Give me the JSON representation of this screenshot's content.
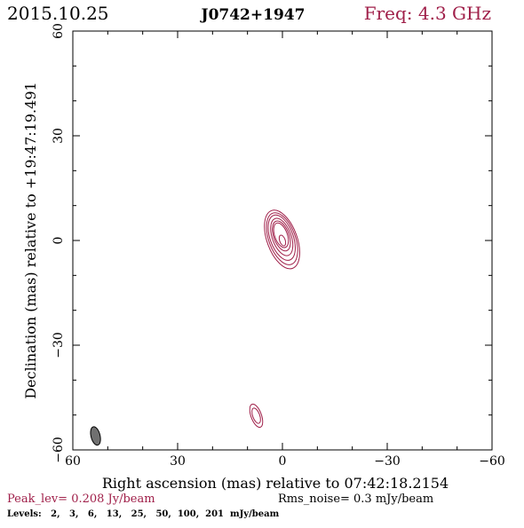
{
  "header": {
    "date": "2015.10.25",
    "source": "J0742+1947",
    "freq": "Freq: 4.3 GHz"
  },
  "footer": {
    "peak": "Peak_lev=  0.208 Jy/beam",
    "rms": "Rms_noise=  0.3 mJy/beam",
    "levels": "Levels:   2,   3,   6,   13,   25,   50,  100,  201  mJy/beam"
  },
  "colors": {
    "contour": "#a0204a",
    "beam": "#707070",
    "axis": "#000000"
  },
  "chart_data": {
    "type": "contour",
    "title": "J0742+1947",
    "xlabel": "Right ascension (mas) relative to 07:42:18.2154",
    "ylabel": "Declination (mas) relative to +19:47:19.491",
    "xlim": [
      60,
      -60
    ],
    "ylim": [
      -60,
      60
    ],
    "x_ticks": [
      60,
      30,
      0,
      -30,
      -60
    ],
    "y_ticks": [
      -60,
      -30,
      0,
      30,
      60
    ],
    "x_tick_labels": [
      "60",
      "30",
      "0",
      "−30",
      "−60"
    ],
    "y_tick_labels": [
      "−60",
      "−30",
      "0",
      "30",
      "60"
    ],
    "contour_levels_mJy": [
      2,
      3,
      6,
      13,
      25,
      50,
      100,
      201
    ],
    "components": [
      {
        "center": [
          0,
          0
        ],
        "position_angle_deg": 20,
        "contours": [
          {
            "a": 3.7,
            "b": 1.8,
            "dx": 0.4,
            "dy": 1.5
          },
          {
            "a": 4.5,
            "b": 2.2,
            "dx": 0.3,
            "dy": 1.3
          },
          {
            "a": 5.6,
            "b": 2.7,
            "dx": 0.2,
            "dy": 1.0
          },
          {
            "a": 6.8,
            "b": 3.3,
            "dx": 0.2,
            "dy": 0.8
          },
          {
            "a": 7.8,
            "b": 3.8,
            "dx": 0.1,
            "dy": 0.5
          },
          {
            "a": 8.8,
            "b": 4.3,
            "dx": 0.1,
            "dy": 0.3
          },
          {
            "a": 1.6,
            "b": 0.8,
            "dx": 0.0,
            "dy": 0.0
          }
        ]
      },
      {
        "center": [
          7.5,
          -50.2
        ],
        "position_angle_deg": 20,
        "contours": [
          {
            "a": 3.5,
            "b": 1.5,
            "dx": 0,
            "dy": 0
          },
          {
            "a": 2.3,
            "b": 1.0,
            "dx": 0,
            "dy": 0
          }
        ]
      }
    ],
    "beam": {
      "center": [
        53.5,
        -56.0
      ],
      "major_mas": 5.4,
      "minor_mas": 2.6,
      "position_angle_deg": 14
    }
  }
}
